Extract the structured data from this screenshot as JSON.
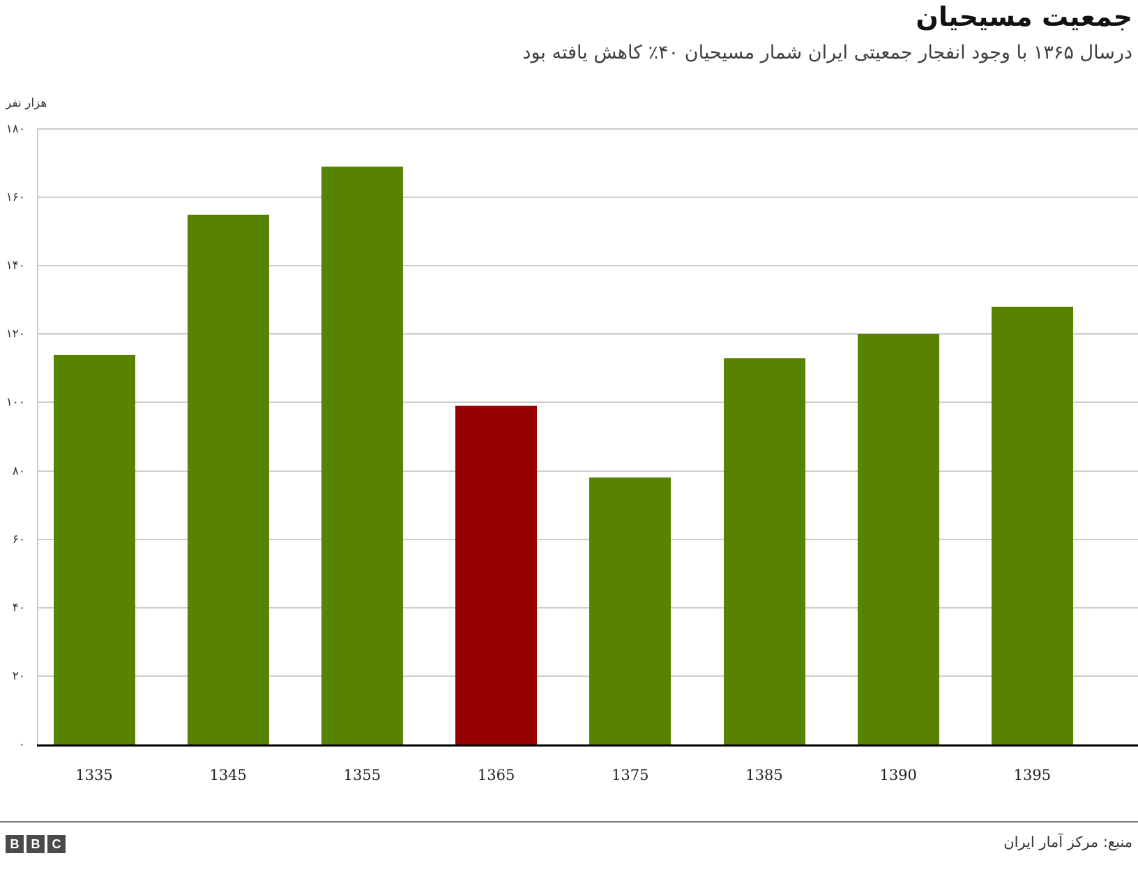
{
  "header": {
    "title": "جمعیت مسیحیان",
    "subtitle": "درسال ۱۳۶۵ با وجود انفجار جمعیتی ایران شمار مسیحیان ۴۰٪ کاهش یافته بود"
  },
  "footer": {
    "source": "منبع: مرکز آمار ایران",
    "logo": [
      "B",
      "B",
      "C"
    ]
  },
  "colors": {
    "default_bar": "#588300",
    "highlight_bar": "#990000",
    "gridline": "#cccccc",
    "baseline": "#000000"
  },
  "chart_data": {
    "type": "bar",
    "title": "جمعیت مسیحیان",
    "subtitle": "درسال ۱۳۶۵ با وجود انفجار جمعیتی ایران شمار مسیحیان ۴۰٪ کاهش یافته بود",
    "xlabel": "",
    "ylabel": "هزار نفر",
    "categories": [
      "1335",
      "1345",
      "1355",
      "1365",
      "1375",
      "1385",
      "1390",
      "1395"
    ],
    "values": [
      114,
      155,
      169,
      99,
      78,
      113,
      120,
      128
    ],
    "highlight": [
      "1365"
    ],
    "ylim": [
      0,
      180
    ],
    "yticks": [
      0,
      20,
      40,
      60,
      80,
      100,
      120,
      140,
      160,
      180
    ],
    "ytick_labels": [
      "۰",
      "۲۰",
      "۴۰",
      "۶۰",
      "۸۰",
      "۱۰۰",
      "۱۲۰",
      "۱۴۰",
      "۱۶۰",
      "۱۸۰"
    ],
    "grid": true,
    "legend": null,
    "source": "منبع: مرکز آمار ایران"
  }
}
